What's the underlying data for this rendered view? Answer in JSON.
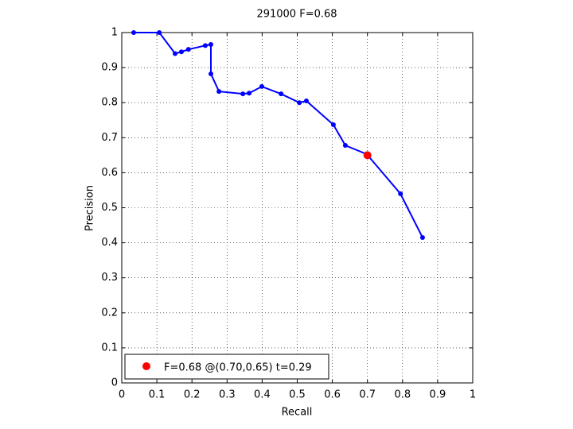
{
  "chart_data": {
    "type": "line",
    "title": "291000 F=0.68",
    "xlabel": "Recall",
    "ylabel": "Precision",
    "xlim": [
      0,
      1
    ],
    "ylim": [
      0,
      1
    ],
    "xticks": [
      0,
      0.1,
      0.2,
      0.3,
      0.4,
      0.5,
      0.6,
      0.7,
      0.8,
      0.9,
      1
    ],
    "yticks": [
      0,
      0.1,
      0.2,
      0.3,
      0.4,
      0.5,
      0.6,
      0.7,
      0.8,
      0.9,
      1
    ],
    "grid": true,
    "legend": "lower left",
    "series": [
      {
        "color": "#0000ff",
        "x": [
          0.034,
          0.107,
          0.152,
          0.17,
          0.19,
          0.238,
          0.254,
          0.254,
          0.277,
          0.345,
          0.363,
          0.399,
          0.454,
          0.506,
          0.526,
          0.603,
          0.637,
          0.698,
          0.794,
          0.857
        ],
        "values": [
          1.0,
          1.0,
          0.94,
          0.945,
          0.952,
          0.963,
          0.966,
          0.882,
          0.832,
          0.825,
          0.827,
          0.846,
          0.825,
          0.8,
          0.805,
          0.737,
          0.678,
          0.653,
          0.54,
          0.415
        ]
      },
      {
        "name": "F=0.68 @(0.70,0.65) t=0.29",
        "color": "#ff0000",
        "x": [
          0.7
        ],
        "values": [
          0.65
        ]
      }
    ]
  }
}
